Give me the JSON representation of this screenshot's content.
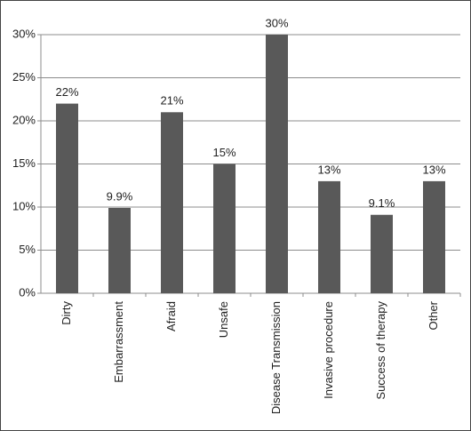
{
  "chart_data": {
    "type": "bar",
    "categories": [
      "Dirty",
      "Embarrassment",
      "Afraid",
      "Unsafe",
      "Disease Transmission",
      "Invasive procedure",
      "Success of therapy",
      "Other"
    ],
    "values": [
      22,
      9.9,
      21,
      15,
      30,
      13,
      9.1,
      13
    ],
    "value_labels": [
      "22%",
      "9.9%",
      "21%",
      "15%",
      "30%",
      "13%",
      "9.1%",
      "13%"
    ],
    "color": "#595959",
    "ylim": [
      0,
      30
    ],
    "yticks": [
      {
        "value": 0,
        "label": "0%"
      },
      {
        "value": 5,
        "label": "5%"
      },
      {
        "value": 10,
        "label": "10%"
      },
      {
        "value": 15,
        "label": "15%"
      },
      {
        "value": 20,
        "label": "20%"
      },
      {
        "value": 25,
        "label": "25%"
      },
      {
        "value": 30,
        "label": "30%"
      }
    ],
    "grid": true
  }
}
